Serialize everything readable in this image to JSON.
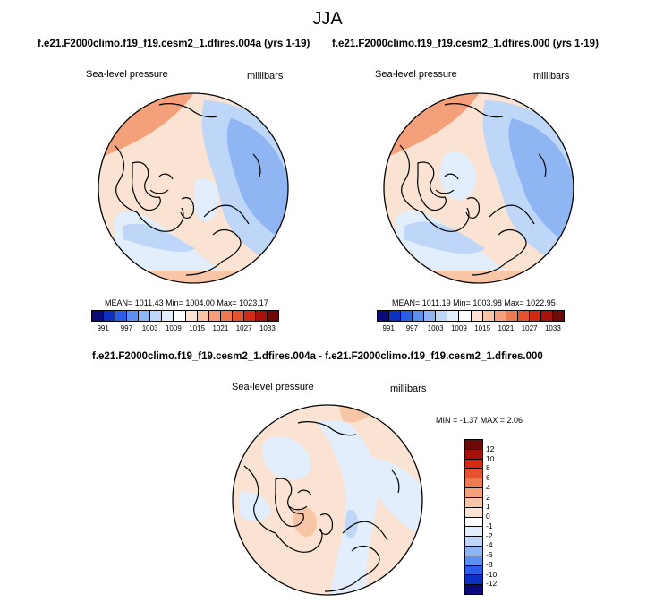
{
  "season": "JJA",
  "left_panel": {
    "title": "f.e21.F2000climo.f19_f19.cesm2_1.dfires.004a (yrs 1-19)",
    "variable": "Sea-level pressure",
    "units": "millibars",
    "stats": "MEAN= 1011.43  Min= 1004.00  Max= 1023.17"
  },
  "right_panel": {
    "title": "f.e21.F2000climo.f19_f19.cesm2_1.dfires.000 (yrs 1-19)",
    "variable": "Sea-level pressure",
    "units": "millibars",
    "stats": "MEAN= 1011.19  Min= 1003.98  Max= 1022.95"
  },
  "diff_panel": {
    "title": "f.e21.F2000climo.f19_f19.cesm2_1.dfires.004a - f.e21.F2000climo.f19_f19.cesm2_1.dfires.000",
    "variable": "Sea-level pressure",
    "units": "millibars",
    "stats": "MIN =  -1.37 MAX =   2.06"
  },
  "colorbar_abs": {
    "ticks": [
      "991",
      "997",
      "1003",
      "1009",
      "1015",
      "1021",
      "1027",
      "1033"
    ],
    "colors": [
      "#0a0a7a",
      "#0b2fc0",
      "#2a5ee8",
      "#5b8ff0",
      "#8fb6f2",
      "#bed6f7",
      "#e2eefb",
      "#ffffff",
      "#fbe3d3",
      "#f8c6a6",
      "#f4a07b",
      "#ee7a52",
      "#e5522f",
      "#d22a12",
      "#a8100a",
      "#6e0a06"
    ]
  },
  "colorbar_diff": {
    "ticks": [
      "12",
      "10",
      "8",
      "6",
      "4",
      "2",
      "1",
      "0",
      "-1",
      "-2",
      "-4",
      "-6",
      "-8",
      "-10",
      "-12"
    ],
    "colors": [
      "#6e0a06",
      "#a8100a",
      "#d22a12",
      "#e5522f",
      "#ee7a52",
      "#f4a07b",
      "#f8c6a6",
      "#fbe3d3",
      "#ffffff",
      "#e2eefb",
      "#bed6f7",
      "#8fb6f2",
      "#5b8ff0",
      "#2a5ee8",
      "#0b2fc0",
      "#0a0a7a"
    ]
  }
}
